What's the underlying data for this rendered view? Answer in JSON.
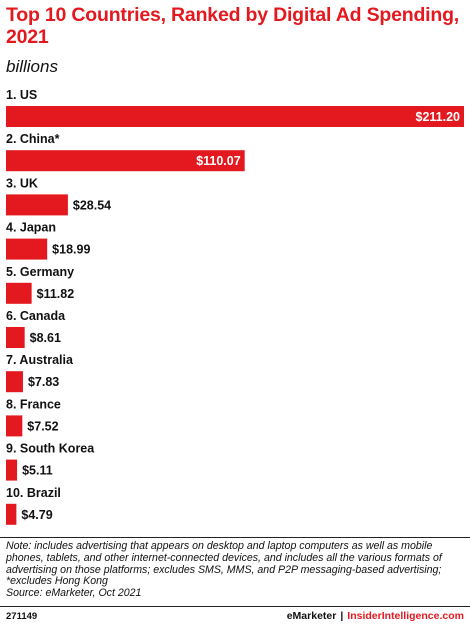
{
  "header": {
    "title": "Top 10 Countries, Ranked by Digital Ad Spending, 2021",
    "subtitle": "billions"
  },
  "chart_data": {
    "type": "bar",
    "orientation": "horizontal",
    "title": "Top 10 Countries, Ranked by Digital Ad Spending, 2021",
    "unit": "billions",
    "categories": [
      "1. US",
      "2. China*",
      "3. UK",
      "4. Japan",
      "5. Germany",
      "6. Canada",
      "7. Australia",
      "8. France",
      "9. South Korea",
      "10. Brazil"
    ],
    "values": [
      211.2,
      110.07,
      28.54,
      18.99,
      11.82,
      8.61,
      7.83,
      7.52,
      5.11,
      4.79
    ],
    "value_labels": [
      "$211.20",
      "$110.07",
      "$28.54",
      "$18.99",
      "$11.82",
      "$8.61",
      "$7.83",
      "$7.52",
      "$5.11",
      "$4.79"
    ],
    "xlim": [
      0,
      211.2
    ],
    "grid": false,
    "bar_color": "#e3191f"
  },
  "notes": {
    "text": "Note: includes advertising that appears on desktop and laptop computers as well as mobile phones, tablets, and other internet-connected devices, and includes all the various formats of advertising on those platforms; excludes SMS, MMS, and P2P messaging-based advertising; *excludes Hong Kong",
    "source": "Source: eMarketer, Oct 2021"
  },
  "footer": {
    "chart_id": "271149",
    "brand_left": "eMarketer",
    "separator": "|",
    "brand_right": "InsiderIntelligence.com"
  }
}
